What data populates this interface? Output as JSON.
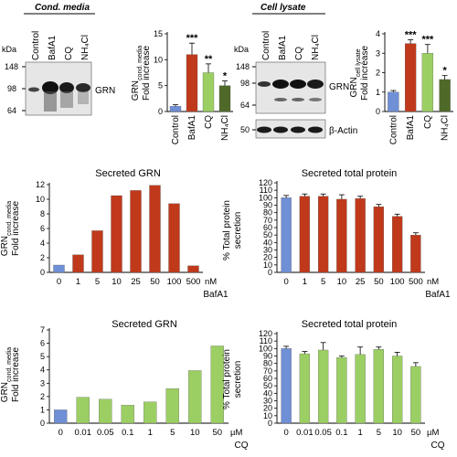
{
  "colors": {
    "control": "#6f8fd6",
    "bafa1": "#c0391b",
    "cq": "#9ccf63",
    "nh4cl": "#4f6a28",
    "blot_background": "#e6e6e6",
    "band": "#1a1a1a"
  },
  "blots": {
    "cond_media": {
      "header": "Cond. media",
      "kda_label": "kDa",
      "markers": [
        "148",
        "98",
        "64"
      ],
      "lanes": [
        "Control",
        "BafA1",
        "CQ",
        "NH₄Cl"
      ],
      "band_label": "GRN"
    },
    "cell_lysate": {
      "header": "Cell lysate",
      "kda_label": "kDa",
      "markers": [
        "148",
        "98",
        "64",
        "50"
      ],
      "lanes": [
        "Control",
        "BafA1",
        "CQ",
        "NH₄Cl"
      ],
      "band_label": "GRN",
      "loading_label": "β-Actin"
    }
  },
  "chart_data": [
    {
      "type": "bar",
      "ylabel_main": "GRN",
      "ylabel_sub": "cond. media",
      "ylabel_line2": "Fold increase",
      "categories": [
        "Control",
        "BafA1",
        "CQ",
        "NH₄Cl"
      ],
      "values": [
        1.0,
        11.0,
        7.5,
        5.0
      ],
      "errors": [
        0.3,
        2.2,
        1.7,
        0.9
      ],
      "significance": [
        "",
        "***",
        "**",
        "*"
      ],
      "ylim": [
        0,
        15
      ],
      "yticks": [
        "0",
        "5",
        "10",
        "15"
      ],
      "bar_colors": [
        "#6f8fd6",
        "#c0391b",
        "#9ccf63",
        "#4f6a28"
      ]
    },
    {
      "type": "bar",
      "ylabel_main": "GRN",
      "ylabel_sub": "cell lysate",
      "ylabel_line2": "Fold increase",
      "categories": [
        "Control",
        "BafA1",
        "CQ",
        "NH₄Cl"
      ],
      "values": [
        1.0,
        3.5,
        3.0,
        1.65
      ],
      "errors": [
        0.08,
        0.2,
        0.45,
        0.2
      ],
      "significance": [
        "",
        "***",
        "***",
        "*"
      ],
      "ylim": [
        0,
        4
      ],
      "yticks": [
        "0",
        "1",
        "2",
        "3",
        "4"
      ],
      "bar_colors": [
        "#6f8fd6",
        "#c0391b",
        "#9ccf63",
        "#4f6a28"
      ]
    },
    {
      "type": "bar",
      "title": "Secreted GRN",
      "ylabel_main": "GRN",
      "ylabel_sub": "cond. media",
      "ylabel_line2": "Fold increase",
      "categories": [
        "0",
        "1",
        "5",
        "10",
        "25",
        "50",
        "100",
        "500"
      ],
      "values": [
        1.0,
        2.4,
        5.7,
        10.5,
        11.2,
        11.9,
        9.4,
        0.9
      ],
      "ylim": [
        0,
        12
      ],
      "yticks": [
        "0",
        "2",
        "4",
        "6",
        "8",
        "10",
        "12"
      ],
      "unit": "nM",
      "xlabel": "BafA1",
      "bar_colors": [
        "#6f8fd6",
        "#c0391b",
        "#c0391b",
        "#c0391b",
        "#c0391b",
        "#c0391b",
        "#c0391b",
        "#c0391b"
      ]
    },
    {
      "type": "bar",
      "title": "Secreted total protein",
      "ylabel_main": "% Total protein",
      "ylabel_line2": "secretion",
      "categories": [
        "0",
        "1",
        "5",
        "10",
        "25",
        "50",
        "100",
        "500"
      ],
      "values": [
        100,
        102,
        102,
        98,
        99,
        88,
        75,
        50
      ],
      "errors": [
        3,
        3,
        3,
        6,
        3,
        3,
        3,
        3
      ],
      "ylim": [
        0,
        120
      ],
      "yticks": [
        "0",
        "10",
        "20",
        "30",
        "40",
        "50",
        "60",
        "70",
        "80",
        "90",
        "100",
        "110",
        "120"
      ],
      "unit": "nM",
      "xlabel": "BafA1",
      "bar_colors": [
        "#6f8fd6",
        "#c0391b",
        "#c0391b",
        "#c0391b",
        "#c0391b",
        "#c0391b",
        "#c0391b",
        "#c0391b"
      ]
    },
    {
      "type": "bar",
      "title": "Secreted GRN",
      "ylabel_main": "GRN",
      "ylabel_sub": "cond. media",
      "ylabel_line2": "Fold increase",
      "categories": [
        "0",
        "0.01",
        "0.05",
        "0.1",
        "1",
        "5",
        "10",
        "50"
      ],
      "values": [
        1.0,
        1.95,
        1.8,
        1.35,
        1.6,
        2.6,
        3.95,
        5.8
      ],
      "ylim": [
        0,
        7
      ],
      "yticks": [
        "0",
        "1",
        "2",
        "3",
        "4",
        "5",
        "6",
        "7"
      ],
      "unit": "µM",
      "xlabel": "CQ",
      "bar_colors": [
        "#6f8fd6",
        "#9ccf63",
        "#9ccf63",
        "#9ccf63",
        "#9ccf63",
        "#9ccf63",
        "#9ccf63",
        "#9ccf63"
      ]
    },
    {
      "type": "bar",
      "title": "Secreted total protein",
      "ylabel_main": "% Total protein",
      "ylabel_line2": "secretion",
      "categories": [
        "0",
        "0.01",
        "0.05",
        "0.1",
        "1",
        "5",
        "10",
        "50"
      ],
      "values": [
        100,
        93,
        98,
        88,
        92,
        99,
        90,
        76
      ],
      "errors": [
        3,
        3,
        10,
        2,
        10,
        3,
        5,
        5
      ],
      "ylim": [
        0,
        120
      ],
      "yticks": [
        "0",
        "10",
        "20",
        "30",
        "40",
        "50",
        "60",
        "70",
        "80",
        "90",
        "100",
        "110",
        "120"
      ],
      "unit": "µM",
      "xlabel": "CQ",
      "bar_colors": [
        "#6f8fd6",
        "#9ccf63",
        "#9ccf63",
        "#9ccf63",
        "#9ccf63",
        "#9ccf63",
        "#9ccf63",
        "#9ccf63"
      ]
    }
  ]
}
